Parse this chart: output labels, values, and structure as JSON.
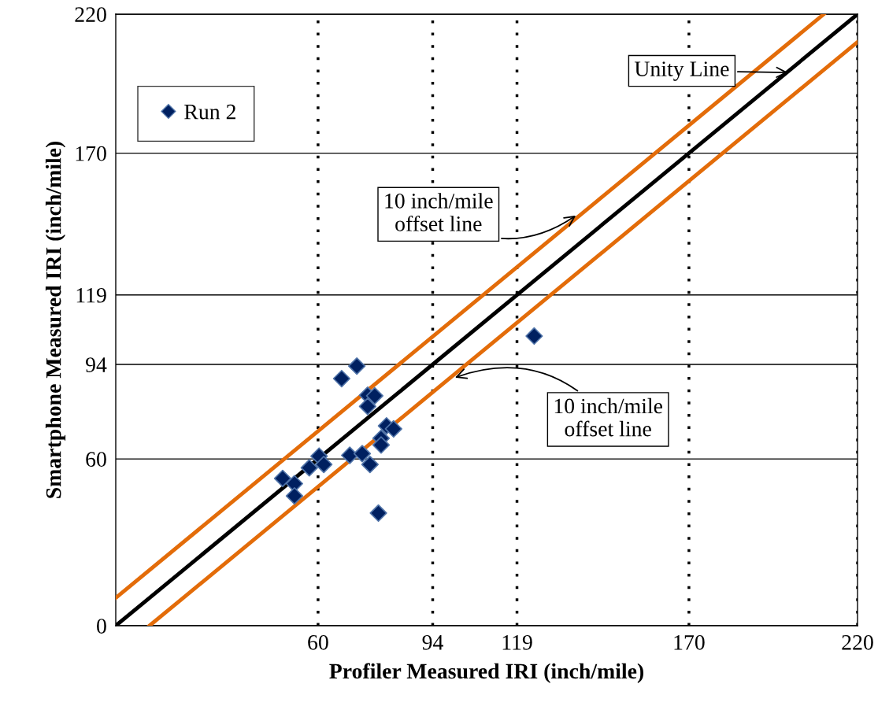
{
  "chart_data": {
    "type": "scatter",
    "xlabel": "Profiler Measured IRI (inch/mile)",
    "ylabel": "Smartphone Measured IRI (inch/mile)",
    "xlim": [
      0,
      220
    ],
    "ylim": [
      0,
      220
    ],
    "xticks": [
      60,
      94,
      119,
      170,
      220
    ],
    "yticks": [
      0,
      60,
      94,
      119,
      170,
      220
    ],
    "grid": true,
    "legend": "top left",
    "marker": "diamond",
    "series": [
      {
        "name": "Run 2",
        "color": "#002060",
        "x": [
          71.5,
          67.0,
          74.7,
          76.8,
          74.7,
          80.3,
          82.4,
          78.7,
          78.7,
          60.3,
          61.7,
          69.4,
          73.1,
          75.4,
          57.4,
          49.5,
          53.0,
          53.0,
          77.9,
          124.1
        ],
        "values": [
          93.4,
          88.9,
          82.9,
          82.7,
          78.9,
          71.9,
          70.8,
          67.4,
          65.0,
          61.0,
          58.0,
          61.3,
          61.9,
          58.0,
          56.8,
          53.0,
          51.1,
          46.7,
          40.5,
          104.2
        ]
      },
      {
        "type": "line",
        "color": "#000000",
        "marker": "none",
        "x": [
          0,
          220
        ],
        "values": [
          0,
          220
        ]
      },
      {
        "type": "line",
        "color": "#e36c09",
        "marker": "none",
        "x": [
          0,
          210
        ],
        "values": [
          10,
          220
        ]
      },
      {
        "type": "line",
        "color": "#e36c09",
        "marker": "none",
        "x": [
          10,
          220
        ],
        "values": [
          0,
          210
        ]
      }
    ],
    "annotations": [
      {
        "text": "Unity Line",
        "x": 200,
        "y": 199
      },
      {
        "text": "10 inch/mile\noffset line",
        "x": 137,
        "y": 148
      },
      {
        "text": "10 inch/mile\noffset line",
        "x": 100,
        "y": 89
      }
    ]
  }
}
